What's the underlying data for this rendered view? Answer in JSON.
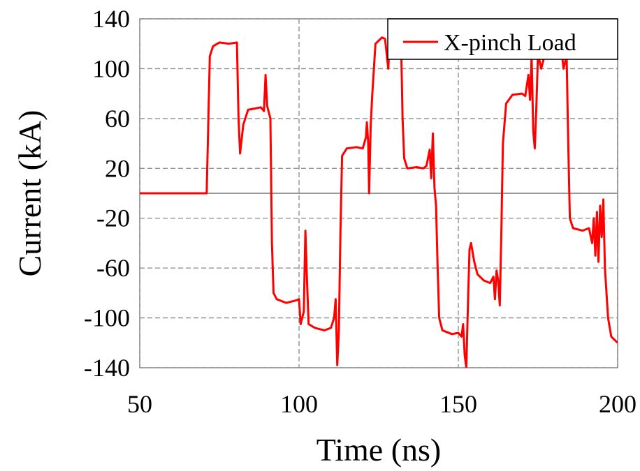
{
  "chart_data": {
    "type": "line",
    "xlabel": "Time (ns)",
    "ylabel": "Current (kA)",
    "xlim": [
      50,
      200
    ],
    "ylim": [
      -140,
      140
    ],
    "xticks": [
      50,
      100,
      150,
      200
    ],
    "yticks": [
      -140,
      -100,
      -60,
      -20,
      20,
      60,
      100,
      140
    ],
    "grid": true,
    "legend": "upper right",
    "series": [
      {
        "name": "X-pinch Load",
        "color": "#ff0000",
        "x": [
          50,
          71,
          72,
          73,
          75,
          78,
          80.5,
          81,
          81.5,
          82.5,
          84,
          86,
          88,
          89,
          89.5,
          90,
          91,
          91.5,
          92,
          93,
          96,
          99,
          100,
          100.5,
          101.5,
          102,
          102.5,
          103,
          105,
          108,
          110,
          111,
          111.5,
          112,
          112.5,
          113,
          113.5,
          115,
          118,
          120,
          121,
          121.3,
          121.7,
          122,
          122.5,
          123,
          124,
          126,
          127,
          128,
          128.5,
          130,
          131,
          132,
          132.5,
          133,
          134,
          137,
          139,
          140,
          141,
          141.5,
          142,
          142.5,
          143,
          143.5,
          144,
          145,
          148,
          150,
          151,
          151.5,
          152,
          152.5,
          153,
          153.5,
          154,
          155,
          156,
          158,
          160,
          161,
          161.5,
          162,
          162.5,
          163,
          163.5,
          164,
          165,
          167,
          170,
          171,
          172,
          172.5,
          173,
          173.5,
          174,
          174.5,
          175,
          176,
          177,
          178,
          180,
          181,
          182,
          183,
          184,
          184.5,
          185,
          186,
          189,
          191,
          192,
          192.5,
          193,
          193.5,
          194,
          194.5,
          195,
          195.5,
          196,
          197,
          198,
          200
        ],
        "values": [
          0,
          0,
          110,
          118,
          121,
          120,
          121,
          60,
          32,
          55,
          67,
          68,
          69,
          66,
          95,
          70,
          60,
          -40,
          -80,
          -85,
          -88,
          -86,
          -85,
          -105,
          -95,
          -30,
          -70,
          -105,
          -108,
          -110,
          -108,
          -100,
          -85,
          -138,
          -110,
          -30,
          30,
          36,
          37,
          36,
          45,
          57,
          40,
          0,
          55,
          80,
          120,
          125,
          124,
          100,
          125,
          130,
          130,
          125,
          60,
          28,
          20,
          21,
          20,
          22,
          35,
          12,
          48,
          5,
          -10,
          -60,
          -100,
          -110,
          -113,
          -112,
          -115,
          -105,
          -130,
          -140,
          -90,
          -45,
          -40,
          -55,
          -65,
          -70,
          -72,
          -67,
          -85,
          -62,
          -70,
          -90,
          -30,
          40,
          72,
          79,
          80,
          78,
          95,
          75,
          110,
          50,
          36,
          70,
          112,
          100,
          110,
          130,
          130,
          120,
          125,
          100,
          110,
          40,
          -20,
          -28,
          -30,
          -28,
          -40,
          -20,
          -50,
          -15,
          -55,
          -10,
          -35,
          -5,
          -60,
          -100,
          -115,
          -120
        ]
      }
    ]
  }
}
